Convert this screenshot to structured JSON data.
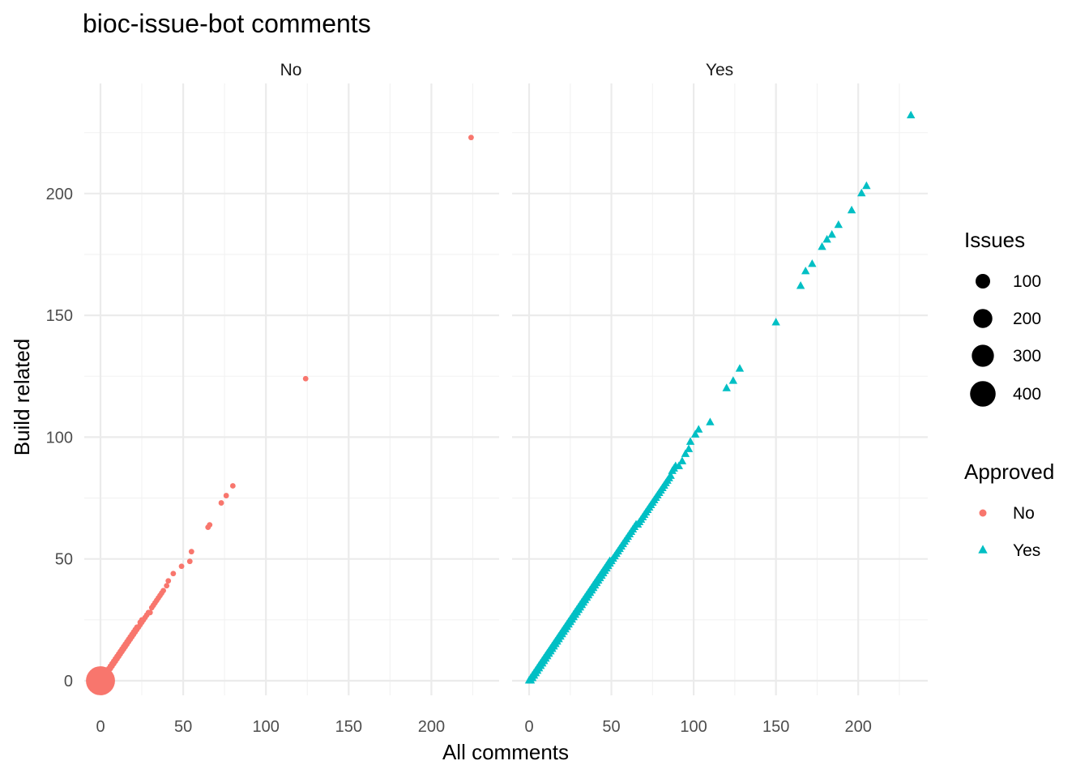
{
  "chart_data": {
    "type": "scatter",
    "title": "bioc-issue-bot comments",
    "xlabel": "All comments",
    "ylabel": "Build related",
    "facets": [
      "No",
      "Yes"
    ],
    "x_ticks": [
      0,
      50,
      100,
      150,
      200
    ],
    "y_ticks": [
      0,
      50,
      100,
      150,
      200
    ],
    "grid": true,
    "legend_position": "right",
    "size_legend": {
      "title": "Issues",
      "breaks": [
        100,
        200,
        300,
        400
      ],
      "labels": [
        "100",
        "200",
        "300",
        "400"
      ]
    },
    "color_legend": {
      "title": "Approved",
      "entries": [
        {
          "label": "No",
          "color": "#F8766D",
          "shape": "circle"
        },
        {
          "label": "Yes",
          "color": "#00BFC4",
          "shape": "triangle"
        }
      ]
    },
    "series": [
      {
        "facet": "No",
        "color": "#F8766D",
        "shape": "circle",
        "points": [
          [
            0,
            0,
            420
          ],
          [
            1,
            0,
            60
          ],
          [
            1,
            1,
            40
          ],
          [
            2,
            1,
            20
          ],
          [
            2,
            2,
            15
          ],
          [
            3,
            2,
            8
          ],
          [
            3,
            3,
            6
          ],
          [
            4,
            3,
            4
          ],
          [
            4,
            4,
            3
          ],
          [
            5,
            4,
            2
          ],
          [
            5,
            5,
            2
          ],
          [
            6,
            5,
            2
          ],
          [
            6,
            6,
            1
          ],
          [
            7,
            6,
            1
          ],
          [
            7,
            7,
            1
          ],
          [
            8,
            7,
            1
          ],
          [
            8,
            8,
            1
          ],
          [
            9,
            8,
            1
          ],
          [
            9,
            9,
            1
          ],
          [
            10,
            9,
            1
          ],
          [
            10,
            10,
            1
          ],
          [
            11,
            10,
            1
          ],
          [
            11,
            11,
            1
          ],
          [
            12,
            11,
            1
          ],
          [
            12,
            12,
            1
          ],
          [
            13,
            12,
            1
          ],
          [
            13,
            13,
            1
          ],
          [
            14,
            13,
            1
          ],
          [
            14,
            14,
            1
          ],
          [
            15,
            14,
            1
          ],
          [
            15,
            15,
            1
          ],
          [
            16,
            15,
            1
          ],
          [
            16,
            16,
            1
          ],
          [
            17,
            16,
            1
          ],
          [
            17,
            17,
            1
          ],
          [
            18,
            17,
            1
          ],
          [
            18,
            18,
            1
          ],
          [
            19,
            18,
            1
          ],
          [
            19,
            19,
            1
          ],
          [
            20,
            19,
            1
          ],
          [
            20,
            20,
            1
          ],
          [
            21,
            20,
            1
          ],
          [
            21,
            21,
            1
          ],
          [
            22,
            21,
            1
          ],
          [
            22,
            22,
            1
          ],
          [
            23,
            22,
            1
          ],
          [
            24,
            23,
            1
          ],
          [
            24,
            24,
            1
          ],
          [
            25,
            24,
            1
          ],
          [
            25,
            25,
            1
          ],
          [
            26,
            25,
            1
          ],
          [
            27,
            26,
            1
          ],
          [
            28,
            27,
            1
          ],
          [
            29,
            28,
            1
          ],
          [
            30,
            28,
            1
          ],
          [
            31,
            30,
            1
          ],
          [
            32,
            31,
            1
          ],
          [
            33,
            32,
            1
          ],
          [
            34,
            33,
            1
          ],
          [
            35,
            34,
            1
          ],
          [
            36,
            35,
            1
          ],
          [
            37,
            36,
            1
          ],
          [
            38,
            37,
            1
          ],
          [
            40,
            39,
            1
          ],
          [
            41,
            41,
            1
          ],
          [
            44,
            44,
            1
          ],
          [
            49,
            47,
            1
          ],
          [
            54,
            49,
            1
          ],
          [
            55,
            53,
            1
          ],
          [
            65,
            63,
            1
          ],
          [
            66,
            64,
            1
          ],
          [
            73,
            73,
            1
          ],
          [
            76,
            76,
            1
          ],
          [
            80,
            80,
            1
          ],
          [
            124,
            124,
            1
          ],
          [
            224,
            223,
            1
          ]
        ]
      },
      {
        "facet": "Yes",
        "color": "#00BFC4",
        "shape": "triangle",
        "points": [
          [
            0,
            0,
            1
          ],
          [
            1,
            0,
            1
          ],
          [
            1,
            1,
            1
          ],
          [
            2,
            1,
            1
          ],
          [
            2,
            2,
            1
          ],
          [
            3,
            2,
            1
          ],
          [
            3,
            3,
            1
          ],
          [
            4,
            3,
            1
          ],
          [
            4,
            4,
            1
          ],
          [
            5,
            4,
            1
          ],
          [
            5,
            5,
            1
          ],
          [
            6,
            5,
            1
          ],
          [
            6,
            6,
            1
          ],
          [
            7,
            6,
            1
          ],
          [
            7,
            7,
            1
          ],
          [
            8,
            7,
            1
          ],
          [
            8,
            8,
            1
          ],
          [
            9,
            8,
            1
          ],
          [
            9,
            9,
            1
          ],
          [
            10,
            9,
            1
          ],
          [
            10,
            10,
            1
          ],
          [
            11,
            10,
            1
          ],
          [
            11,
            11,
            1
          ],
          [
            12,
            11,
            1
          ],
          [
            12,
            12,
            1
          ],
          [
            13,
            12,
            1
          ],
          [
            13,
            13,
            1
          ],
          [
            14,
            13,
            1
          ],
          [
            14,
            14,
            1
          ],
          [
            15,
            14,
            1
          ],
          [
            15,
            15,
            1
          ],
          [
            16,
            15,
            1
          ],
          [
            16,
            16,
            1
          ],
          [
            17,
            16,
            1
          ],
          [
            17,
            17,
            1
          ],
          [
            18,
            17,
            1
          ],
          [
            18,
            18,
            1
          ],
          [
            19,
            18,
            1
          ],
          [
            19,
            19,
            1
          ],
          [
            20,
            19,
            1
          ],
          [
            20,
            20,
            1
          ],
          [
            21,
            20,
            1
          ],
          [
            21,
            21,
            1
          ],
          [
            22,
            21,
            1
          ],
          [
            22,
            22,
            1
          ],
          [
            23,
            22,
            1
          ],
          [
            23,
            23,
            1
          ],
          [
            24,
            23,
            1
          ],
          [
            24,
            24,
            1
          ],
          [
            25,
            24,
            1
          ],
          [
            25,
            25,
            1
          ],
          [
            26,
            25,
            1
          ],
          [
            26,
            26,
            1
          ],
          [
            27,
            26,
            1
          ],
          [
            27,
            27,
            1
          ],
          [
            28,
            27,
            1
          ],
          [
            28,
            28,
            1
          ],
          [
            29,
            28,
            1
          ],
          [
            29,
            29,
            1
          ],
          [
            30,
            29,
            1
          ],
          [
            30,
            30,
            1
          ],
          [
            31,
            30,
            1
          ],
          [
            31,
            31,
            1
          ],
          [
            32,
            31,
            1
          ],
          [
            32,
            32,
            1
          ],
          [
            33,
            32,
            1
          ],
          [
            33,
            33,
            1
          ],
          [
            34,
            33,
            1
          ],
          [
            34,
            34,
            1
          ],
          [
            35,
            34,
            1
          ],
          [
            35,
            35,
            1
          ],
          [
            36,
            35,
            1
          ],
          [
            36,
            36,
            1
          ],
          [
            37,
            36,
            1
          ],
          [
            37,
            37,
            1
          ],
          [
            38,
            37,
            1
          ],
          [
            38,
            38,
            1
          ],
          [
            39,
            38,
            1
          ],
          [
            39,
            39,
            1
          ],
          [
            40,
            39,
            1
          ],
          [
            40,
            40,
            1
          ],
          [
            41,
            40,
            1
          ],
          [
            41,
            41,
            1
          ],
          [
            42,
            41,
            1
          ],
          [
            42,
            42,
            1
          ],
          [
            43,
            42,
            1
          ],
          [
            43,
            43,
            1
          ],
          [
            44,
            43,
            1
          ],
          [
            44,
            44,
            1
          ],
          [
            45,
            44,
            1
          ],
          [
            45,
            45,
            1
          ],
          [
            46,
            45,
            1
          ],
          [
            46,
            46,
            1
          ],
          [
            47,
            46,
            1
          ],
          [
            47,
            47,
            1
          ],
          [
            48,
            47,
            1
          ],
          [
            48,
            48,
            1
          ],
          [
            49,
            48,
            1
          ],
          [
            49,
            49,
            1
          ],
          [
            50,
            49,
            1
          ],
          [
            51,
            50,
            1
          ],
          [
            52,
            51,
            1
          ],
          [
            53,
            52,
            1
          ],
          [
            54,
            53,
            1
          ],
          [
            55,
            54,
            1
          ],
          [
            56,
            55,
            1
          ],
          [
            57,
            56,
            1
          ],
          [
            58,
            57,
            1
          ],
          [
            59,
            58,
            1
          ],
          [
            60,
            59,
            1
          ],
          [
            61,
            60,
            1
          ],
          [
            62,
            61,
            1
          ],
          [
            63,
            62,
            1
          ],
          [
            64,
            63,
            1
          ],
          [
            65,
            64,
            1
          ],
          [
            66,
            64,
            1
          ],
          [
            67,
            65,
            1
          ],
          [
            68,
            66,
            1
          ],
          [
            69,
            67,
            1
          ],
          [
            70,
            68,
            1
          ],
          [
            71,
            69,
            1
          ],
          [
            72,
            70,
            1
          ],
          [
            73,
            71,
            1
          ],
          [
            74,
            72,
            1
          ],
          [
            75,
            73,
            1
          ],
          [
            76,
            74,
            1
          ],
          [
            77,
            75,
            1
          ],
          [
            78,
            76,
            1
          ],
          [
            79,
            77,
            1
          ],
          [
            80,
            78,
            1
          ],
          [
            81,
            79,
            1
          ],
          [
            82,
            80,
            1
          ],
          [
            83,
            81,
            1
          ],
          [
            84,
            82,
            1
          ],
          [
            85,
            83,
            1
          ],
          [
            86,
            84,
            1
          ],
          [
            87,
            86,
            1
          ],
          [
            88,
            87,
            1
          ],
          [
            89,
            88,
            1
          ],
          [
            91,
            88,
            1
          ],
          [
            93,
            90,
            1
          ],
          [
            95,
            93,
            1
          ],
          [
            97,
            95,
            1
          ],
          [
            98,
            98,
            1
          ],
          [
            101,
            101,
            1
          ],
          [
            103,
            103,
            1
          ],
          [
            110,
            106,
            1
          ],
          [
            120,
            120,
            1
          ],
          [
            124,
            123,
            1
          ],
          [
            128,
            128,
            1
          ],
          [
            150,
            147,
            1
          ],
          [
            165,
            162,
            1
          ],
          [
            168,
            168,
            1
          ],
          [
            172,
            171,
            1
          ],
          [
            178,
            178,
            1
          ],
          [
            181,
            181,
            1
          ],
          [
            184,
            183,
            1
          ],
          [
            188,
            187,
            1
          ],
          [
            196,
            193,
            1
          ],
          [
            202,
            200,
            1
          ],
          [
            205,
            203,
            1
          ],
          [
            232,
            232,
            1
          ]
        ]
      }
    ]
  }
}
